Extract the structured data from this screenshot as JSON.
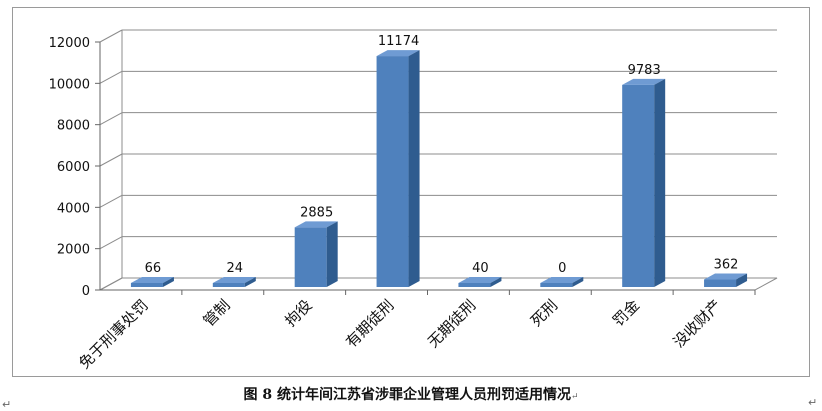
{
  "chart_data": {
    "type": "bar",
    "title": "",
    "xlabel": "",
    "ylabel": "",
    "ylim": [
      0,
      12000
    ],
    "yticks": [
      0,
      2000,
      4000,
      6000,
      8000,
      10000,
      12000
    ],
    "grid": true,
    "legend": "none",
    "categories": [
      "免于刑事处罚",
      "管制",
      "拘役",
      "有期徒刑",
      "无期徒刑",
      "死刑",
      "罚金",
      "没收财产"
    ],
    "values": [
      66,
      24,
      2885,
      11174,
      40,
      0,
      9783,
      362
    ],
    "data_labels": [
      "66",
      "24",
      "2885",
      "11174",
      "40",
      "0",
      "9783",
      "362"
    ],
    "colors": {
      "bar_front": "#4f81bd",
      "bar_top": "#6f9bd3",
      "bar_side": "#2f5c8f",
      "grid": "#8c8c8c"
    }
  },
  "caption": "图 8 统计年间江苏省涉罪企业管理人员刑罚适用情况",
  "marks": {
    "left": "↵",
    "caption_end": "↵",
    "right": "↵"
  }
}
